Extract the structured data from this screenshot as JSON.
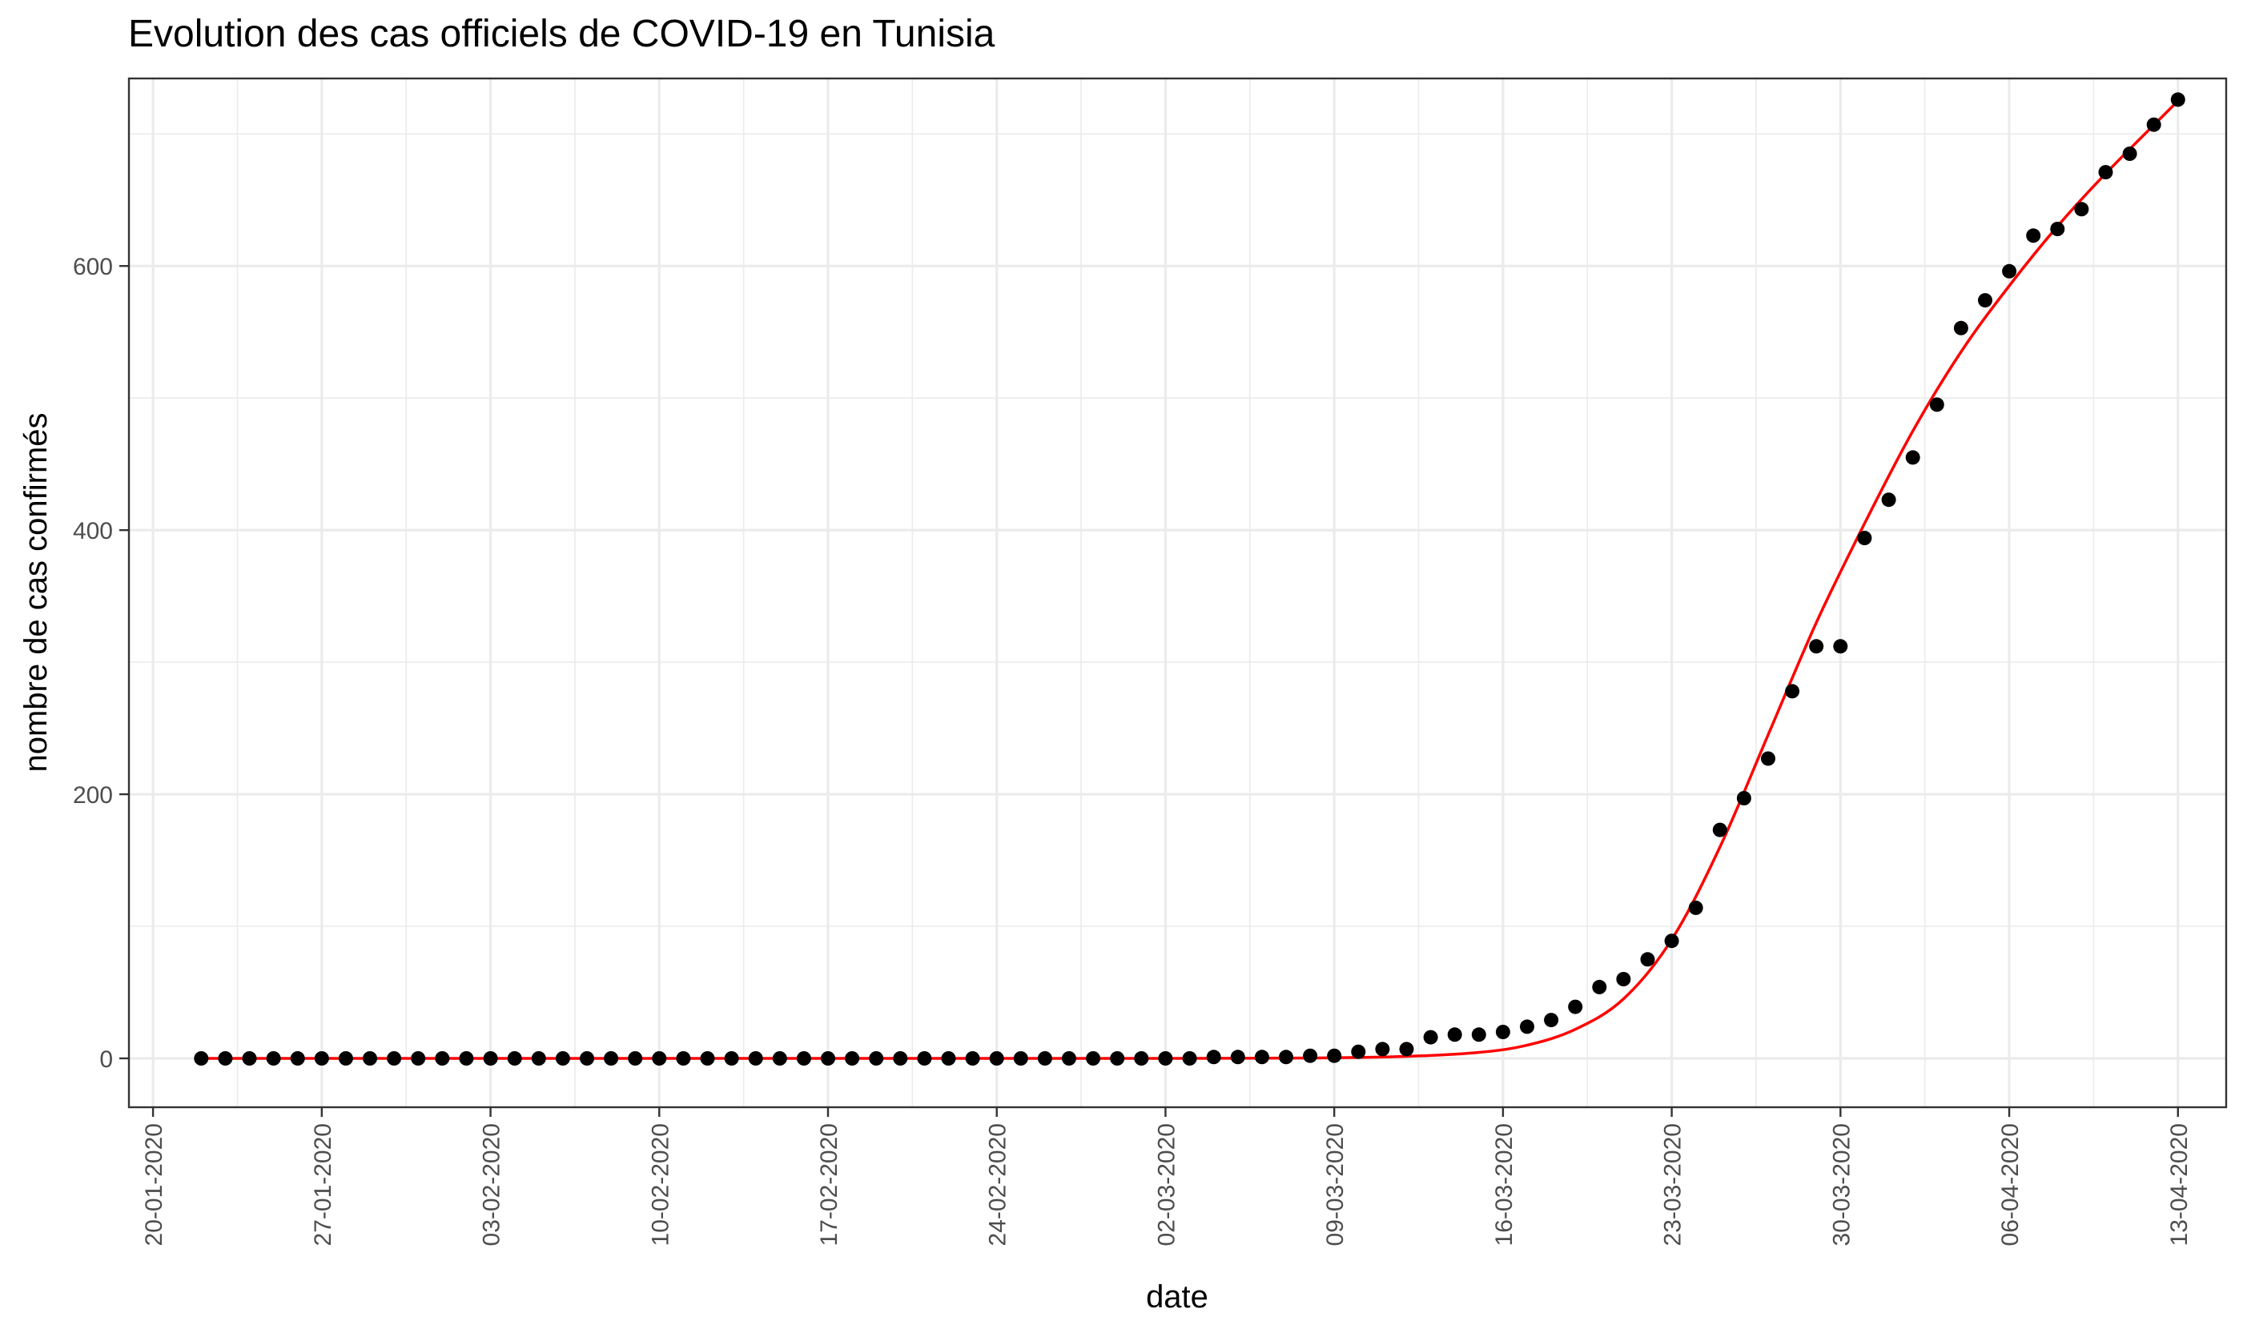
{
  "chart_data": {
    "type": "scatter",
    "title": "Evolution des cas officiels de COVID-19 en Tunisia",
    "xlabel": "date",
    "ylabel": "nombre de cas confirmés",
    "x_start_date": "2020-01-19",
    "x_end_date": "2020-04-15",
    "ylim": [
      -37,
      742
    ],
    "x_ticks": [
      "20-01-2020",
      "27-01-2020",
      "03-02-2020",
      "10-02-2020",
      "17-02-2020",
      "24-02-2020",
      "02-03-2020",
      "09-03-2020",
      "16-03-2020",
      "23-03-2020",
      "30-03-2020",
      "06-04-2020",
      "13-04-2020"
    ],
    "y_ticks": [
      0,
      200,
      400,
      600
    ],
    "grid": true,
    "legend": "none",
    "colors": {
      "points": "#000000",
      "fit": "#ff0000"
    },
    "series": [
      {
        "kind": "points",
        "x": [
          "2020-01-22",
          "2020-01-23",
          "2020-01-24",
          "2020-01-25",
          "2020-01-26",
          "2020-01-27",
          "2020-01-28",
          "2020-01-29",
          "2020-01-30",
          "2020-01-31",
          "2020-02-01",
          "2020-02-02",
          "2020-02-03",
          "2020-02-04",
          "2020-02-05",
          "2020-02-06",
          "2020-02-07",
          "2020-02-08",
          "2020-02-09",
          "2020-02-10",
          "2020-02-11",
          "2020-02-12",
          "2020-02-13",
          "2020-02-14",
          "2020-02-15",
          "2020-02-16",
          "2020-02-17",
          "2020-02-18",
          "2020-02-19",
          "2020-02-20",
          "2020-02-21",
          "2020-02-22",
          "2020-02-23",
          "2020-02-24",
          "2020-02-25",
          "2020-02-26",
          "2020-02-27",
          "2020-02-28",
          "2020-02-29",
          "2020-03-01",
          "2020-03-02",
          "2020-03-03",
          "2020-03-04",
          "2020-03-05",
          "2020-03-06",
          "2020-03-07",
          "2020-03-08",
          "2020-03-09",
          "2020-03-10",
          "2020-03-11",
          "2020-03-12",
          "2020-03-13",
          "2020-03-14",
          "2020-03-15",
          "2020-03-16",
          "2020-03-17",
          "2020-03-18",
          "2020-03-19",
          "2020-03-20",
          "2020-03-21",
          "2020-03-22",
          "2020-03-23",
          "2020-03-24",
          "2020-03-25",
          "2020-03-26",
          "2020-03-27",
          "2020-03-28",
          "2020-03-29",
          "2020-03-30",
          "2020-03-31",
          "2020-04-01",
          "2020-04-02",
          "2020-04-03",
          "2020-04-04",
          "2020-04-05",
          "2020-04-06",
          "2020-04-07",
          "2020-04-08",
          "2020-04-09",
          "2020-04-10",
          "2020-04-11",
          "2020-04-12",
          "2020-04-13"
        ],
        "y": [
          0,
          0,
          0,
          0,
          0,
          0,
          0,
          0,
          0,
          0,
          0,
          0,
          0,
          0,
          0,
          0,
          0,
          0,
          0,
          0,
          0,
          0,
          0,
          0,
          0,
          0,
          0,
          0,
          0,
          0,
          0,
          0,
          0,
          0,
          0,
          0,
          0,
          0,
          0,
          0,
          0,
          0,
          1,
          1,
          1,
          1,
          2,
          2,
          5,
          7,
          7,
          16,
          18,
          18,
          20,
          24,
          29,
          39,
          54,
          60,
          75,
          89,
          114,
          173,
          197,
          227,
          278,
          312,
          312,
          394,
          423,
          455,
          495,
          553,
          574,
          596,
          623,
          628,
          643,
          671,
          685,
          707,
          726
        ]
      },
      {
        "kind": "fit",
        "curve": "logistic",
        "x": [
          "2020-01-22",
          "2020-02-05",
          "2020-02-19",
          "2020-03-02",
          "2020-03-08",
          "2020-03-12",
          "2020-03-15",
          "2020-03-17",
          "2020-03-19",
          "2020-03-21",
          "2020-03-23",
          "2020-03-25",
          "2020-03-27",
          "2020-03-29",
          "2020-03-31",
          "2020-04-02",
          "2020-04-04",
          "2020-04-06",
          "2020-04-08",
          "2020-04-10",
          "2020-04-13"
        ],
        "y": [
          0,
          0,
          0,
          0,
          0.3,
          1.5,
          4.5,
          10,
          22,
          45,
          90,
          160,
          245,
          330,
          405,
          475,
          535,
          585,
          630,
          670,
          725
        ]
      }
    ]
  }
}
